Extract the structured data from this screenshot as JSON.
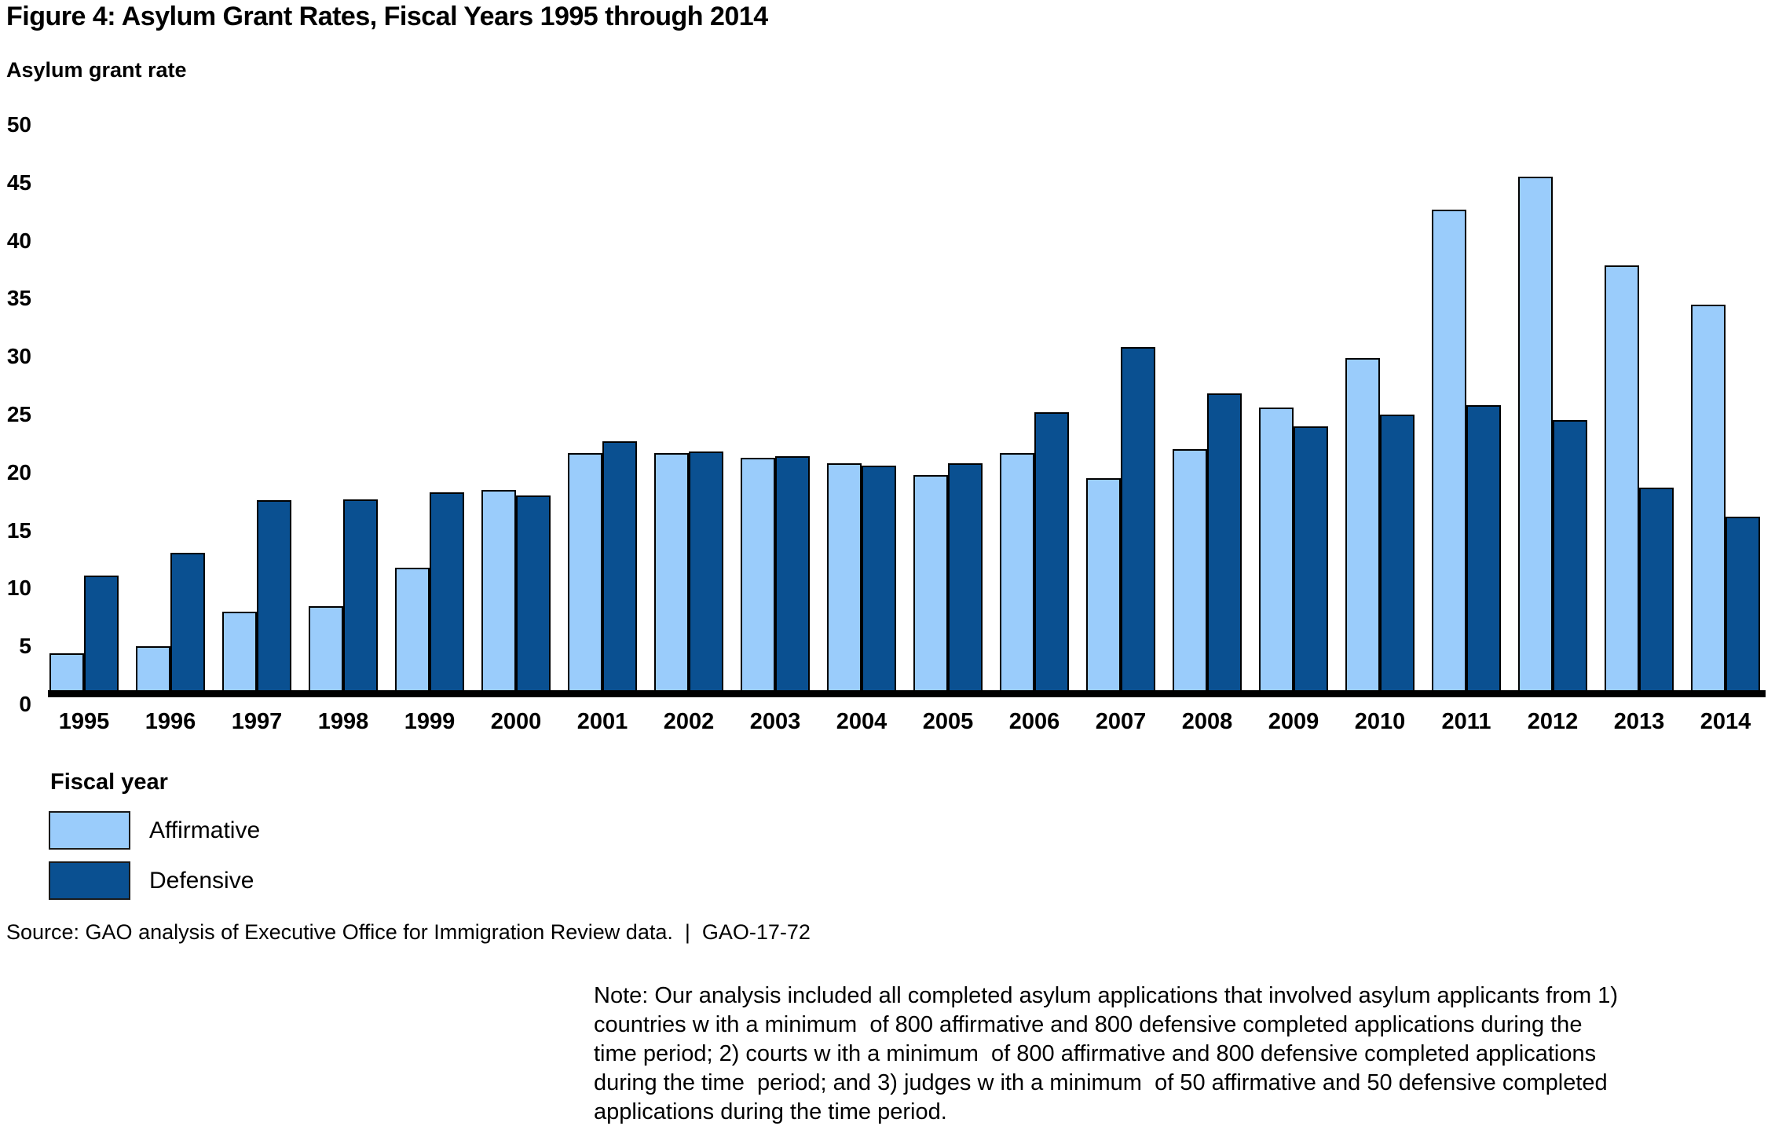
{
  "title": "Figure 4: Asylum Grant Rates, Fiscal Years 1995 through 2014",
  "y_axis": {
    "label": "Asylum grant rate",
    "ticks": [
      0,
      5,
      10,
      15,
      20,
      25,
      30,
      35,
      40,
      45,
      50
    ],
    "max": 50
  },
  "x_axis": {
    "label": "Fiscal year"
  },
  "legend": [
    {
      "label": "Affirmative",
      "color": "#9ACCFB"
    },
    {
      "label": "Defensive",
      "color": "#0A5091"
    }
  ],
  "source_line": "Source: GAO analysis of Executive Office for Immigration Review data.  |  GAO-17-72",
  "note_lines": [
    "Note: Our analysis included all completed asylum applications that involved asylum applicants from 1)",
    "countries w ith a minimum  of 800 affirmative and 800 defensive completed applications during the",
    "time period; 2) courts w ith a minimum  of 800 affirmative and 800 defensive completed applications",
    "during the time  period; and 3) judges w ith a minimum  of 50 affirmative and 50 defensive completed",
    "applications during the time period."
  ],
  "chart_data": {
    "type": "bar",
    "title": "Figure 4: Asylum Grant Rates, Fiscal Years 1995 through 2014",
    "xlabel": "Fiscal year",
    "ylabel": "Asylum grant rate",
    "ylim": [
      0,
      50
    ],
    "ytick_step": 5,
    "grid": false,
    "legend_position": "bottom-left",
    "categories": [
      "1995",
      "1996",
      "1997",
      "1998",
      "1999",
      "2000",
      "2001",
      "2002",
      "2003",
      "2004",
      "2005",
      "2006",
      "2007",
      "2008",
      "2009",
      "2010",
      "2011",
      "2012",
      "2013",
      "2014"
    ],
    "series": [
      {
        "name": "Affirmative",
        "color": "#9ACCFB",
        "values": [
          4.4,
          5.0,
          8.0,
          8.5,
          11.8,
          18.5,
          21.7,
          21.7,
          21.3,
          20.8,
          19.8,
          21.7,
          19.5,
          22.0,
          25.6,
          29.9,
          42.7,
          45.5,
          37.9,
          34.5
        ]
      },
      {
        "name": "Defensive",
        "color": "#0A5091",
        "values": [
          11.1,
          13.1,
          17.6,
          17.7,
          18.3,
          18.0,
          22.7,
          21.8,
          21.4,
          20.6,
          20.8,
          25.2,
          30.8,
          26.8,
          24.0,
          25.0,
          25.8,
          24.5,
          18.7,
          16.2
        ]
      }
    ]
  }
}
